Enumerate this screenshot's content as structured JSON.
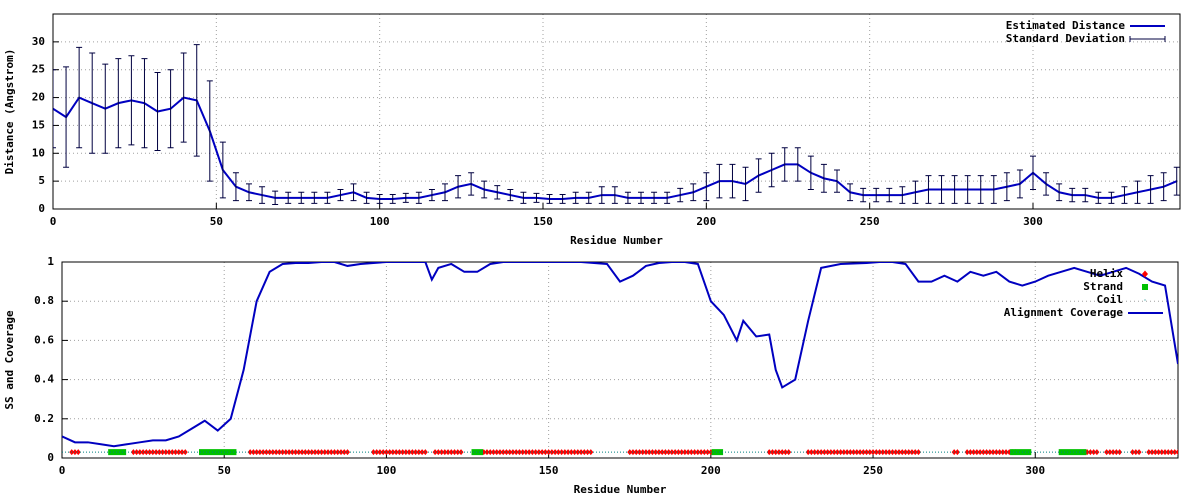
{
  "chart_data": [
    {
      "type": "line",
      "xlabel": "Residue Number",
      "ylabel": "Distance (Angstrom)",
      "xlim": [
        0,
        345
      ],
      "ylim": [
        0,
        35
      ],
      "xticks": [
        0,
        50,
        100,
        150,
        200,
        250,
        300
      ],
      "yticks": [
        0,
        5,
        10,
        15,
        20,
        25,
        30
      ],
      "grid": true,
      "legend": "top-right",
      "x": [
        0,
        4,
        8,
        12,
        16,
        20,
        24,
        28,
        32,
        36,
        40,
        44,
        48,
        52,
        56,
        60,
        64,
        68,
        72,
        76,
        80,
        84,
        88,
        92,
        96,
        100,
        104,
        108,
        112,
        116,
        120,
        124,
        128,
        132,
        136,
        140,
        144,
        148,
        152,
        156,
        160,
        164,
        168,
        172,
        176,
        180,
        184,
        188,
        192,
        196,
        200,
        204,
        208,
        212,
        216,
        220,
        224,
        228,
        232,
        236,
        240,
        244,
        248,
        252,
        256,
        260,
        264,
        268,
        272,
        276,
        280,
        284,
        288,
        292,
        296,
        300,
        304,
        308,
        312,
        316,
        320,
        324,
        328,
        332,
        336,
        340,
        344
      ],
      "series": [
        {
          "name": "Estimated Distance",
          "color": "#0000c0",
          "values": [
            18,
            16.5,
            20,
            19,
            18,
            19,
            19.5,
            19,
            17.5,
            18,
            20,
            19.5,
            14,
            7,
            4,
            3,
            2.5,
            2,
            2,
            2,
            2,
            2,
            2.5,
            3,
            2,
            1.8,
            1.8,
            2,
            2,
            2.5,
            3,
            4,
            4.5,
            3.5,
            3,
            2.5,
            2,
            2,
            1.8,
            1.8,
            2,
            2,
            2.5,
            2.5,
            2,
            2,
            2,
            2,
            2.5,
            3,
            4,
            5,
            5,
            4.5,
            6,
            7,
            8,
            8,
            6.5,
            5.5,
            5,
            3,
            2.5,
            2.5,
            2.5,
            2.5,
            3,
            3.5,
            3.5,
            3.5,
            3.5,
            3.5,
            3.5,
            4,
            4.5,
            6.5,
            4.5,
            3,
            2.5,
            2.5,
            2,
            2,
            2.5,
            3,
            3.5,
            4,
            5
          ]
        },
        {
          "name": "Standard Deviation",
          "color": "#000040",
          "errors": [
            7,
            9,
            9,
            9,
            8,
            8,
            8,
            8,
            7,
            7,
            8,
            10,
            9,
            5,
            2.5,
            1.5,
            1.5,
            1.2,
            1,
            1,
            1,
            1,
            1,
            1.5,
            1,
            0.8,
            0.8,
            0.8,
            1,
            1,
            1.5,
            2,
            2,
            1.5,
            1.2,
            1,
            1,
            0.8,
            0.8,
            0.8,
            1,
            1,
            1.5,
            1.5,
            1,
            1,
            1,
            1,
            1.2,
            1.5,
            2.5,
            3,
            3,
            3,
            3,
            3,
            3,
            3,
            3,
            2.5,
            2,
            1.5,
            1.2,
            1.2,
            1.2,
            1.5,
            2,
            2.5,
            2.5,
            2.5,
            2.5,
            2.5,
            2.5,
            2.5,
            2.5,
            3,
            2,
            1.5,
            1.2,
            1.2,
            1,
            1,
            1.5,
            2,
            2.5,
            2.5,
            2.5
          ]
        }
      ]
    },
    {
      "type": "line",
      "xlabel": "Residue Number",
      "ylabel": "SS and Coverage",
      "xlim": [
        0,
        344
      ],
      "ylim": [
        0,
        1
      ],
      "xticks": [
        0,
        50,
        100,
        150,
        200,
        250,
        300
      ],
      "yticks": [
        0,
        0.2,
        0.4,
        0.6,
        0.8,
        1
      ],
      "grid": true,
      "legend": "top-right",
      "series": [
        {
          "name": "Helix",
          "color": "#ff0000",
          "marker": "diamond",
          "y": 0.03,
          "segments": [
            [
              3,
              5
            ],
            [
              22,
              38
            ],
            [
              58,
              88
            ],
            [
              96,
              112
            ],
            [
              115,
              123
            ],
            [
              130,
              163
            ],
            [
              175,
              200
            ],
            [
              218,
              224
            ],
            [
              230,
              264
            ],
            [
              275,
              276
            ],
            [
              279,
              294
            ],
            [
              316,
              319
            ],
            [
              322,
              326
            ],
            [
              330,
              332
            ],
            [
              335,
              344
            ]
          ]
        },
        {
          "name": "Strand",
          "color": "#00c000",
          "marker": "square",
          "y": 0.03,
          "segments": [
            [
              15,
              19
            ],
            [
              43,
              53
            ],
            [
              127,
              129
            ],
            [
              201,
              203
            ],
            [
              293,
              298
            ],
            [
              308,
              315
            ]
          ]
        },
        {
          "name": "Coil",
          "color": "#008080",
          "marker": "dot",
          "y": 0.03,
          "segments": [
            [
              0,
              344
            ]
          ]
        },
        {
          "name": "Alignment Coverage",
          "color": "#0000c0",
          "x": [
            0,
            4,
            8,
            12,
            16,
            20,
            24,
            28,
            32,
            36,
            40,
            44,
            48,
            52,
            56,
            60,
            64,
            68,
            72,
            76,
            80,
            84,
            88,
            92,
            96,
            100,
            104,
            108,
            112,
            114,
            116,
            120,
            124,
            128,
            132,
            136,
            144,
            152,
            160,
            168,
            172,
            176,
            180,
            184,
            188,
            192,
            196,
            200,
            204,
            208,
            210,
            214,
            218,
            220,
            222,
            226,
            230,
            234,
            240,
            248,
            252,
            256,
            260,
            264,
            268,
            272,
            276,
            280,
            284,
            288,
            292,
            296,
            300,
            304,
            308,
            312,
            316,
            320,
            324,
            328,
            332,
            336,
            340,
            344
          ],
          "values": [
            0.11,
            0.08,
            0.08,
            0.07,
            0.06,
            0.07,
            0.08,
            0.09,
            0.09,
            0.11,
            0.15,
            0.19,
            0.14,
            0.2,
            0.45,
            0.8,
            0.95,
            0.99,
            0.995,
            0.995,
            1,
            1,
            0.98,
            0.99,
            0.995,
            1,
            1,
            1,
            1,
            0.91,
            0.97,
            0.99,
            0.95,
            0.95,
            0.99,
            1,
            1,
            1,
            1,
            0.99,
            0.9,
            0.93,
            0.98,
            0.995,
            1,
            1,
            0.99,
            0.8,
            0.73,
            0.6,
            0.7,
            0.62,
            0.63,
            0.45,
            0.36,
            0.4,
            0.7,
            0.97,
            0.99,
            0.995,
            1,
            1,
            0.99,
            0.9,
            0.9,
            0.93,
            0.9,
            0.95,
            0.93,
            0.95,
            0.9,
            0.88,
            0.9,
            0.93,
            0.95,
            0.97,
            0.95,
            0.93,
            0.95,
            0.97,
            0.94,
            0.9,
            0.88,
            0.48
          ]
        }
      ]
    }
  ]
}
